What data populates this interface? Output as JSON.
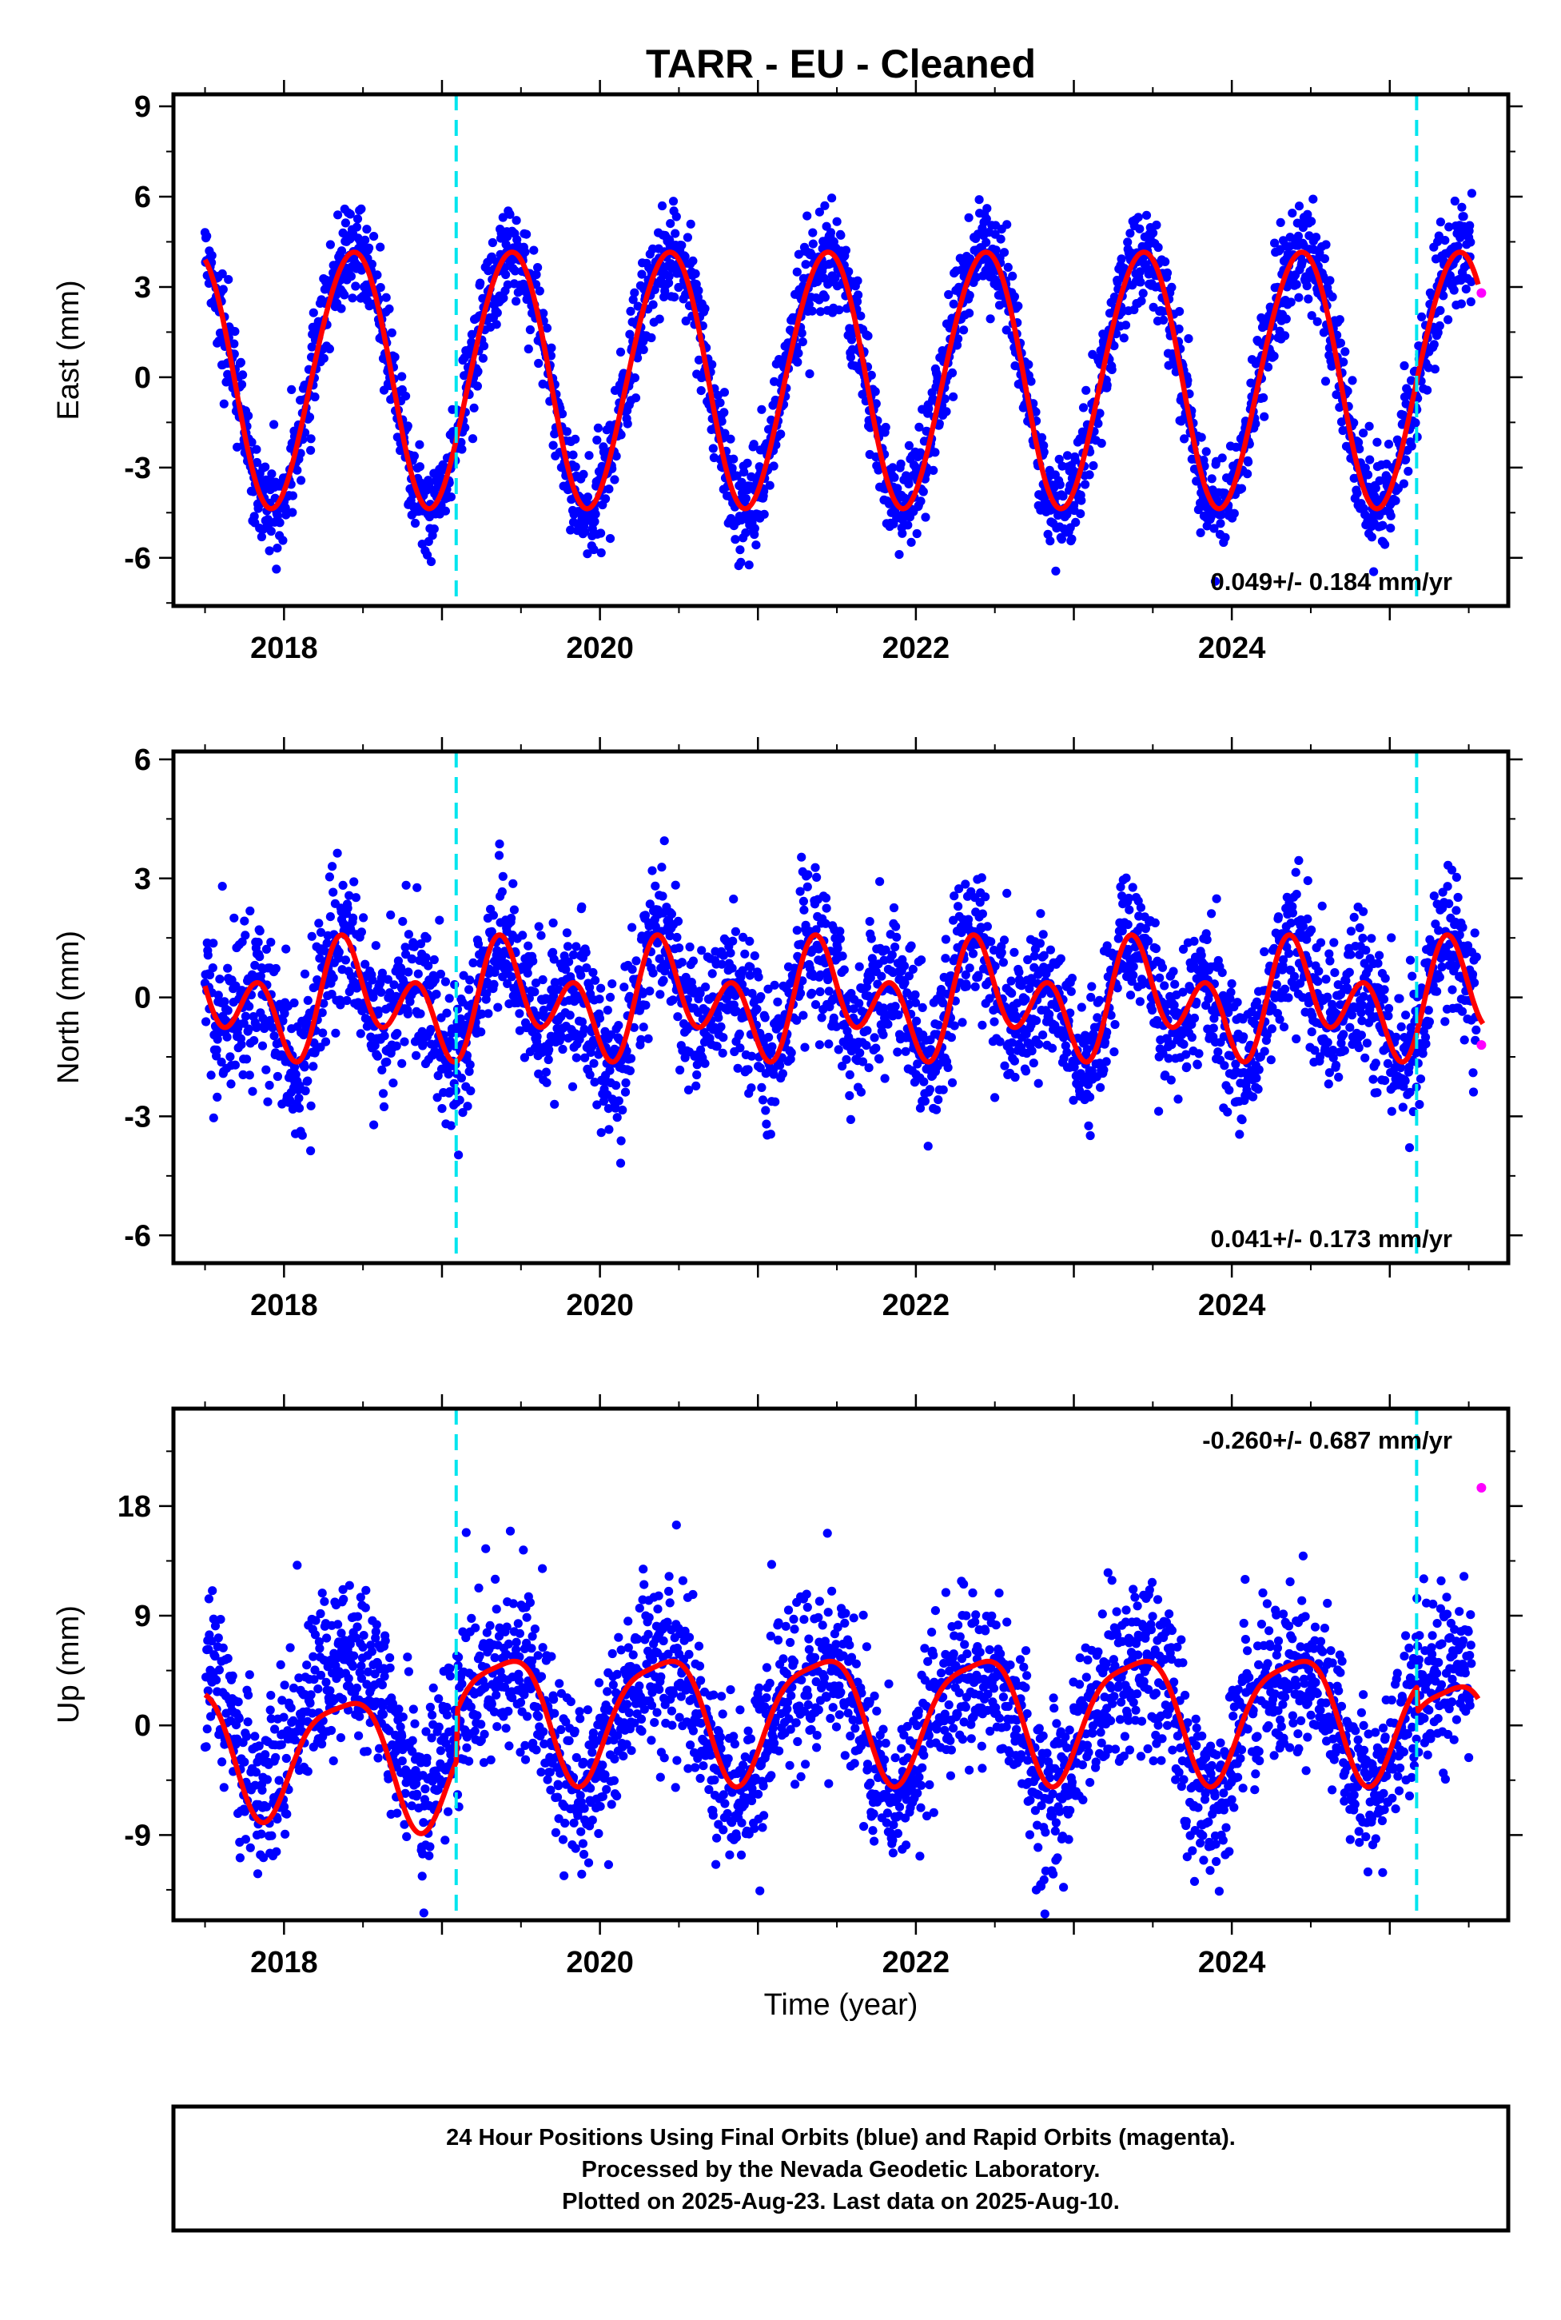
{
  "title": "TARR  - EU - Cleaned",
  "xlabel": "Time (year)",
  "colors": {
    "final_points": "#0000ff",
    "rapid_points": "#ff00ff",
    "model": "#ff0000",
    "breaks": "#00e5ee",
    "frame": "#000000"
  },
  "footer": {
    "line1": "24 Hour Positions Using Final Orbits (blue) and Rapid Orbits (magenta).",
    "line2": "Processed by the Nevada Geodetic Laboratory.",
    "line3": "Plotted on 2025-Aug-23. Last data on 2025-Aug-10."
  },
  "chart_data": [
    {
      "type": "scatter",
      "ylabel": "East (mm)",
      "rate_label": "0.049+/- 0.184 mm/yr",
      "rate_position": "bottom-right",
      "xlim": [
        2017.3,
        2025.75
      ],
      "ylim": [
        -7.6,
        9.4
      ],
      "xticks": [
        "2018",
        "2020",
        "2022",
        "2024"
      ],
      "xtick_values": [
        2018,
        2020,
        2022,
        2024
      ],
      "yticks": [
        "-6",
        "-3",
        "0",
        "3",
        "6",
        "9"
      ],
      "ytick_values": [
        -6,
        -3,
        0,
        3,
        6,
        9
      ],
      "break_lines": [
        2019.09,
        2025.17
      ],
      "series": [
        {
          "role": "final",
          "data_range": [
            2017.5,
            2025.52
          ],
          "noise": 0.85
        },
        {
          "role": "model",
          "model": {
            "offset": 0.0,
            "amp1": 4.25,
            "phase1": 0.43,
            "amp2": 0.2,
            "phase2": 0.1
          }
        },
        {
          "role": "rapid",
          "x": [
            2025.58
          ],
          "y": [
            2.8
          ]
        }
      ]
    },
    {
      "type": "scatter",
      "ylabel": "North (mm)",
      "rate_label": "0.041+/- 0.173 mm/yr",
      "rate_position": "bottom-right",
      "xlim": [
        2017.3,
        2025.75
      ],
      "ylim": [
        -6.7,
        6.2
      ],
      "xticks": [
        "2018",
        "2020",
        "2022",
        "2024"
      ],
      "xtick_values": [
        2018,
        2020,
        2022,
        2024
      ],
      "yticks": [
        "-6",
        "-3",
        "0",
        "3",
        "6"
      ],
      "ytick_values": [
        -6,
        -3,
        0,
        3,
        6
      ],
      "break_lines": [
        2019.09,
        2025.17
      ],
      "series": [
        {
          "role": "final",
          "data_range": [
            2017.5,
            2025.55
          ],
          "noise": 0.95
        },
        {
          "role": "model",
          "model": {
            "offset": -0.1,
            "amp1": 0.75,
            "phase1": 0.45,
            "amp2": 1.05,
            "phase2": 0.35
          }
        },
        {
          "role": "rapid",
          "x": [
            2025.58
          ],
          "y": [
            -1.2
          ]
        }
      ]
    },
    {
      "type": "scatter",
      "ylabel": "Up (mm)",
      "rate_label": "-0.260+/- 0.687 mm/yr",
      "rate_position": "top-right",
      "xlim": [
        2017.3,
        2025.75
      ],
      "ylim": [
        -16,
        26
      ],
      "xticks": [
        "2018",
        "2020",
        "2022",
        "2024"
      ],
      "xtick_values": [
        2018,
        2020,
        2022,
        2024
      ],
      "yticks": [
        "-9",
        "0",
        "9",
        "18"
      ],
      "ytick_values": [
        -9,
        0,
        9,
        18
      ],
      "break_lines": [
        2019.09,
        2025.17
      ],
      "series": [
        {
          "role": "final",
          "data_range": [
            2017.5,
            2025.52
          ],
          "noise": 3.4
        },
        {
          "role": "model",
          "model": {
            "offset": 0.5,
            "amp1": 5.0,
            "phase1": 0.38,
            "amp2": 1.2,
            "phase2": 0.1
          }
        },
        {
          "role": "rapid",
          "x": [
            2025.58
          ],
          "y": [
            19.5
          ]
        }
      ]
    }
  ]
}
